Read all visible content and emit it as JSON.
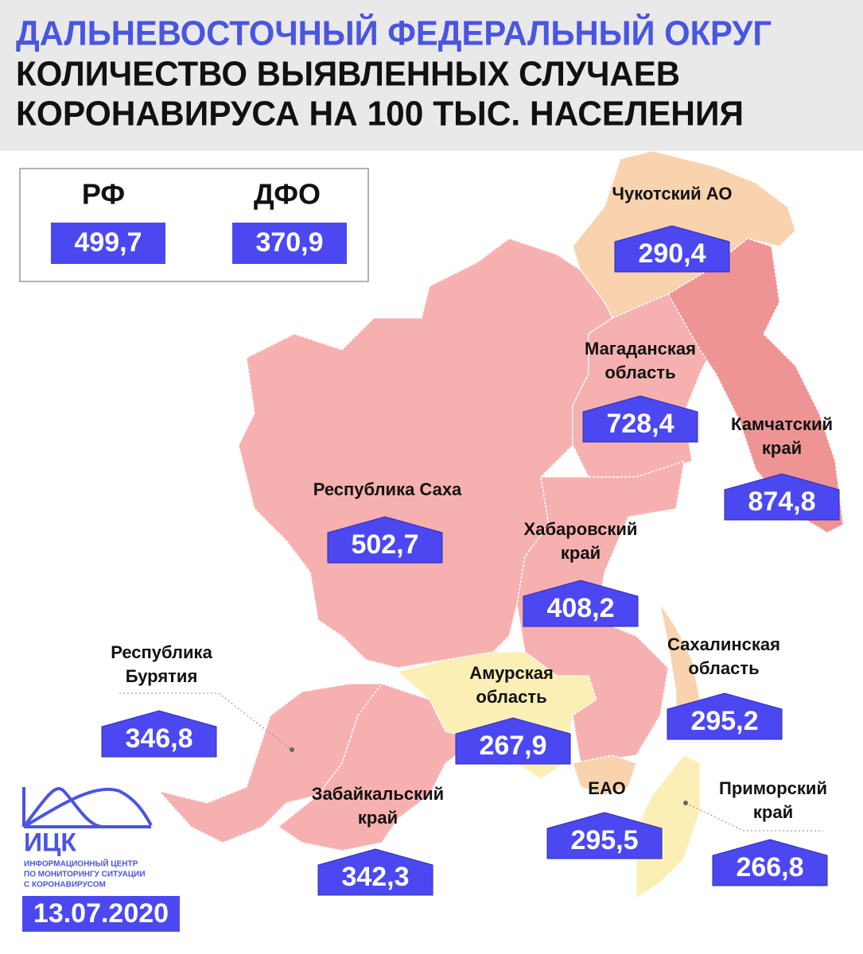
{
  "header": {
    "title": "ДАЛЬНЕВОСТОЧНЫЙ ФЕДЕРАЛЬНЫЙ ОКРУГ",
    "subtitle": [
      "КОЛИЧЕСТВО ВЫЯВЛЕННЫХ СЛУЧАЕВ",
      "КОРОНАВИРУСА НА 100 ТЫС. НАСЕЛЕНИЯ"
    ]
  },
  "summary": [
    {
      "label": "РФ",
      "value": "499,7"
    },
    {
      "label": "ДФО",
      "value": "370,9"
    }
  ],
  "regions": [
    {
      "name": [
        "Чукотский АО"
      ],
      "value": "290,4"
    },
    {
      "name": [
        "Магаданская",
        "область"
      ],
      "value": "728,4"
    },
    {
      "name": [
        "Камчатский",
        "край"
      ],
      "value": "874,8"
    },
    {
      "name": [
        "Республика Саха"
      ],
      "value": "502,7"
    },
    {
      "name": [
        "Хабаровский",
        "край"
      ],
      "value": "408,2"
    },
    {
      "name": [
        "Сахалинская",
        "область"
      ],
      "value": "295,2"
    },
    {
      "name": [
        "Амурская",
        "область"
      ],
      "value": "267,9"
    },
    {
      "name": [
        "Республика",
        "Бурятия"
      ],
      "value": "346,8"
    },
    {
      "name": [
        "Забайкальский",
        "край"
      ],
      "value": "342,3"
    },
    {
      "name": [
        "ЕАО"
      ],
      "value": "295,5"
    },
    {
      "name": [
        "Приморский",
        "край"
      ],
      "value": "266,8"
    }
  ],
  "footer": {
    "logo": "ИЦК",
    "org": [
      "ИНФОРМАЦИОННЫЙ ЦЕНТР",
      "ПО МОНИТОРИНГУ СИТУАЦИИ",
      "С КОРОНАВИРУСОМ"
    ],
    "date": "13.07.2020"
  }
}
